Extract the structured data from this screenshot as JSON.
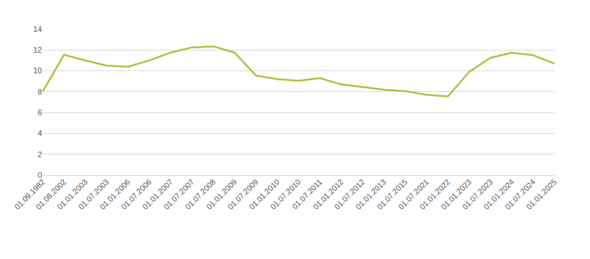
{
  "chart_data": {
    "type": "line",
    "categories": [
      "01.09.1982",
      "01.08.2002",
      "01.01.2003",
      "01.07.2003",
      "01.01.2006",
      "01.07.2006",
      "01.01.2007",
      "01.07.2007",
      "01.07.2008",
      "01.01.2009",
      "01.07.2009",
      "01.01.2010",
      "01.07.2010",
      "01.07.2011",
      "01.01.2012",
      "01.07.2012",
      "01.01.2013",
      "01.07.2015",
      "01.07.2021",
      "01.01.2022",
      "01.01.2023",
      "01.07.2023",
      "01.01.2024",
      "01.07.2024",
      "01.01.2025"
    ],
    "values": [
      8.0,
      11.55,
      11.0,
      10.5,
      10.4,
      11.0,
      11.75,
      12.25,
      12.35,
      11.75,
      9.55,
      9.2,
      9.05,
      9.3,
      8.7,
      8.45,
      8.2,
      8.05,
      7.7,
      7.55,
      9.9,
      11.25,
      11.75,
      11.5,
      10.7
    ],
    "color": "#a9c23f",
    "ylim": [
      0,
      14
    ],
    "yticks": [
      0,
      2,
      4,
      6,
      8,
      10,
      12,
      14
    ],
    "grid": true
  }
}
